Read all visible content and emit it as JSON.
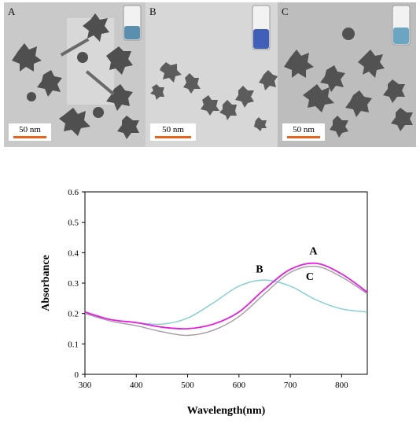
{
  "figure": {
    "panels": [
      {
        "label": "A",
        "scale": "50 nm",
        "vial_color": "#5a8fb0"
      },
      {
        "label": "B",
        "scale": "50 nm",
        "vial_color": "#3f5fb8"
      },
      {
        "label": "C",
        "scale": "50 nm",
        "vial_color": "#6aa6c4"
      }
    ]
  },
  "chart_data": {
    "type": "line",
    "title": "",
    "xlabel": "Wavelength(nm)",
    "ylabel": "Absorbance",
    "xlim": [
      300,
      850
    ],
    "ylim": [
      0,
      0.6
    ],
    "xticks": [
      300,
      400,
      500,
      600,
      700,
      800
    ],
    "yticks": [
      0,
      0.1,
      0.2,
      0.3,
      0.4,
      0.5,
      0.6
    ],
    "grid": false,
    "series": [
      {
        "name": "A",
        "color": "#e81ce0",
        "x": [
          300,
          350,
          400,
          450,
          500,
          550,
          600,
          650,
          700,
          750,
          800,
          850
        ],
        "y": [
          0.205,
          0.18,
          0.17,
          0.155,
          0.15,
          0.165,
          0.205,
          0.28,
          0.345,
          0.365,
          0.33,
          0.27
        ]
      },
      {
        "name": "B",
        "color": "#7fd0cf",
        "x": [
          300,
          350,
          400,
          450,
          500,
          550,
          600,
          650,
          700,
          750,
          800,
          850
        ],
        "y": [
          0.2,
          0.18,
          0.17,
          0.165,
          0.185,
          0.235,
          0.29,
          0.31,
          0.29,
          0.245,
          0.215,
          0.205
        ]
      },
      {
        "name": "C",
        "color": "#a59aa5",
        "x": [
          300,
          350,
          400,
          450,
          500,
          550,
          600,
          650,
          700,
          750,
          800,
          850
        ],
        "y": [
          0.2,
          0.175,
          0.16,
          0.14,
          0.128,
          0.145,
          0.19,
          0.265,
          0.335,
          0.355,
          0.32,
          0.265
        ]
      }
    ],
    "annotations": [
      {
        "text": "A",
        "x": 745,
        "y": 0.395
      },
      {
        "text": "B",
        "x": 640,
        "y": 0.335
      },
      {
        "text": "C",
        "x": 738,
        "y": 0.31
      }
    ]
  }
}
